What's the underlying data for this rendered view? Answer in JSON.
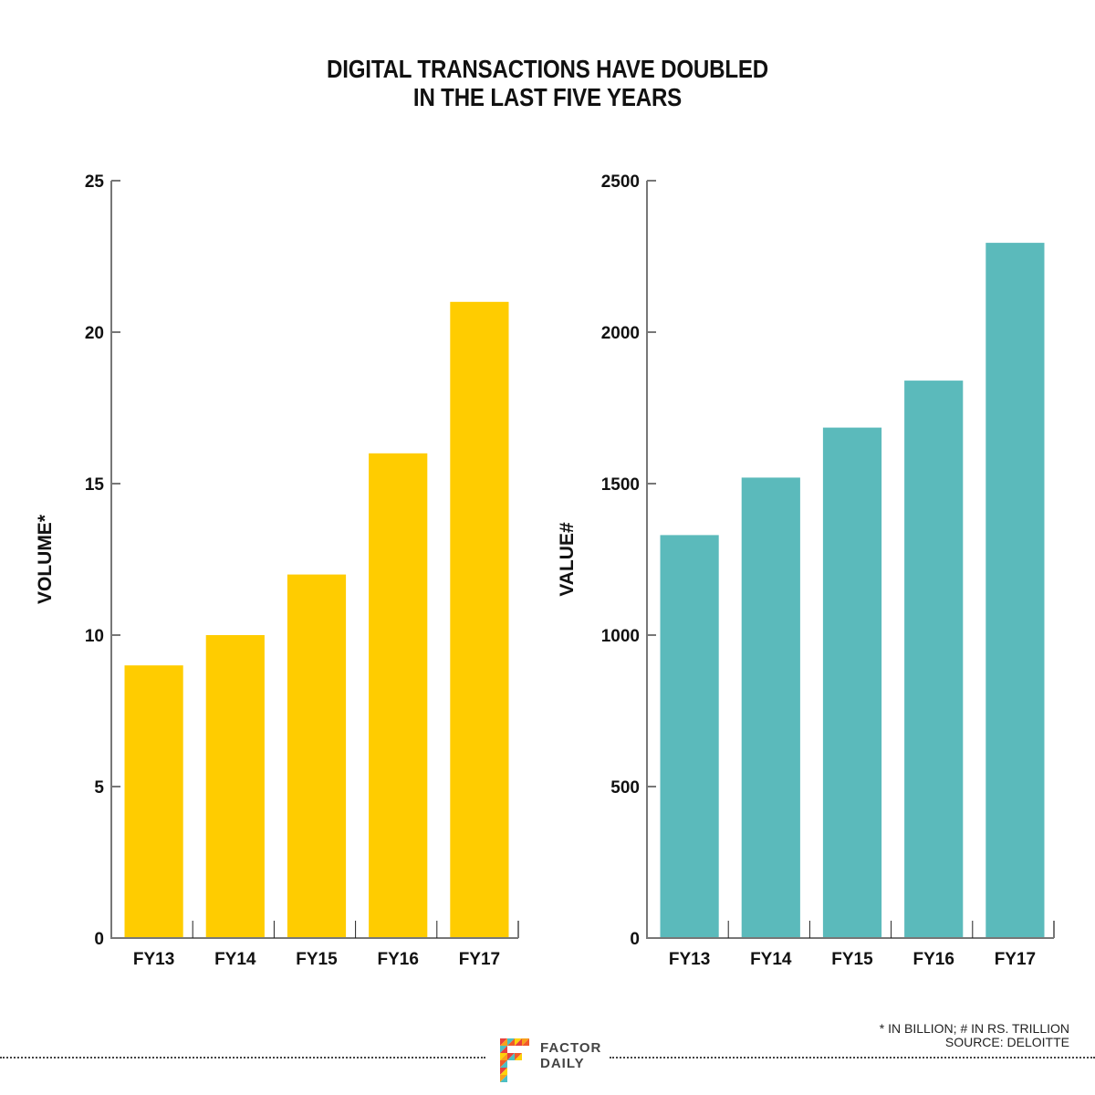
{
  "title": {
    "line1": "DIGITAL TRANSACTIONS HAVE DOUBLED",
    "line2": "IN THE LAST FIVE YEARS"
  },
  "chart_data": [
    {
      "type": "bar",
      "title": "",
      "xlabel": "",
      "ylabel": "VOLUME*",
      "categories": [
        "FY13",
        "FY14",
        "FY15",
        "FY16",
        "FY17"
      ],
      "values": [
        9,
        10,
        12,
        16,
        21
      ],
      "ylim": [
        0,
        25
      ],
      "yticks": [
        0,
        5,
        10,
        15,
        20,
        25
      ],
      "ytick_labels": [
        "0",
        "5",
        "10",
        "15",
        "20",
        "25"
      ],
      "color": "#FFCC00",
      "grid": false
    },
    {
      "type": "bar",
      "title": "",
      "xlabel": "",
      "ylabel": "VALUE#",
      "categories": [
        "FY13",
        "FY14",
        "FY15",
        "FY16",
        "FY17"
      ],
      "values": [
        1330,
        1520,
        1685,
        1840,
        2295
      ],
      "ylim": [
        0,
        2500
      ],
      "yticks": [
        0,
        500,
        1000,
        1500,
        2000,
        2500
      ],
      "ytick_labels": [
        "0",
        "500",
        "1000",
        "1500",
        "2000",
        "2500"
      ],
      "color": "#5BBABB",
      "grid": false
    }
  ],
  "footnote": {
    "line1": "* IN BILLION; # IN RS. TRILLION",
    "line2": "SOURCE: DELOITTE"
  },
  "logo": {
    "line1": "FACTOR",
    "line2": "DAILY"
  }
}
